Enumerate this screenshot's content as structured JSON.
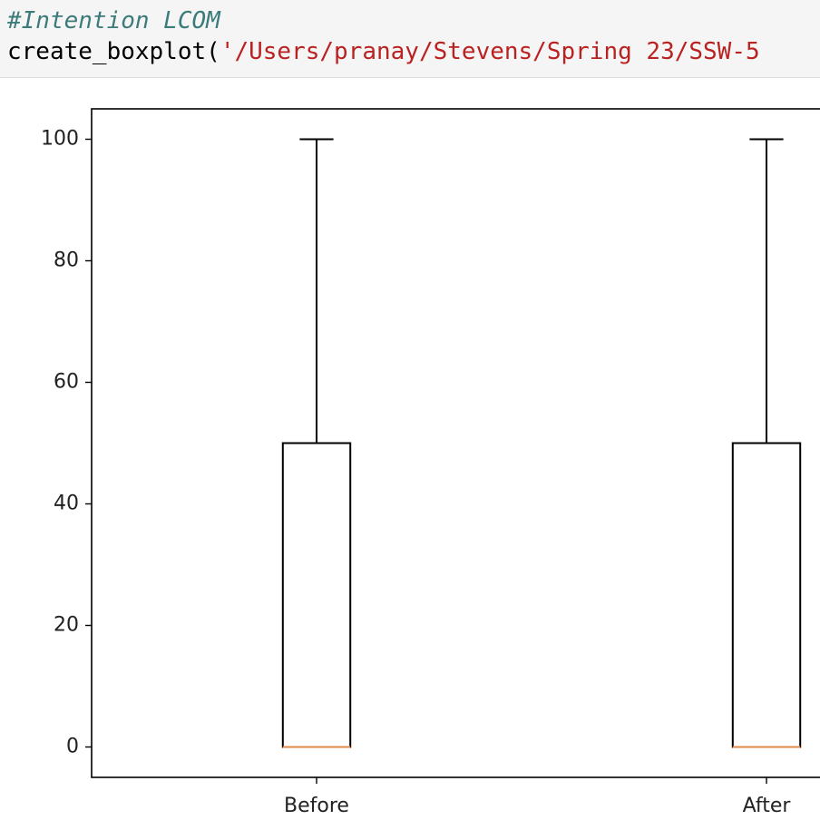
{
  "code": {
    "comment": "#Intention LCOM",
    "call": "create_boxplot(",
    "string": "'/Users/pranay/Stevens/Spring 23/SSW-5"
  },
  "chart_data": {
    "type": "boxplot",
    "categories": [
      "Before",
      "After"
    ],
    "boxes": [
      {
        "min": 0,
        "q1": 0,
        "median": 0,
        "q3": 50,
        "max": 100
      },
      {
        "min": 0,
        "q1": 0,
        "median": 0,
        "q3": 50,
        "max": 100
      }
    ],
    "color": "#000000",
    "median_color": "#e08a45",
    "ylim": [
      -5,
      105
    ],
    "yticks": [
      0,
      20,
      40,
      60,
      80,
      100
    ]
  }
}
